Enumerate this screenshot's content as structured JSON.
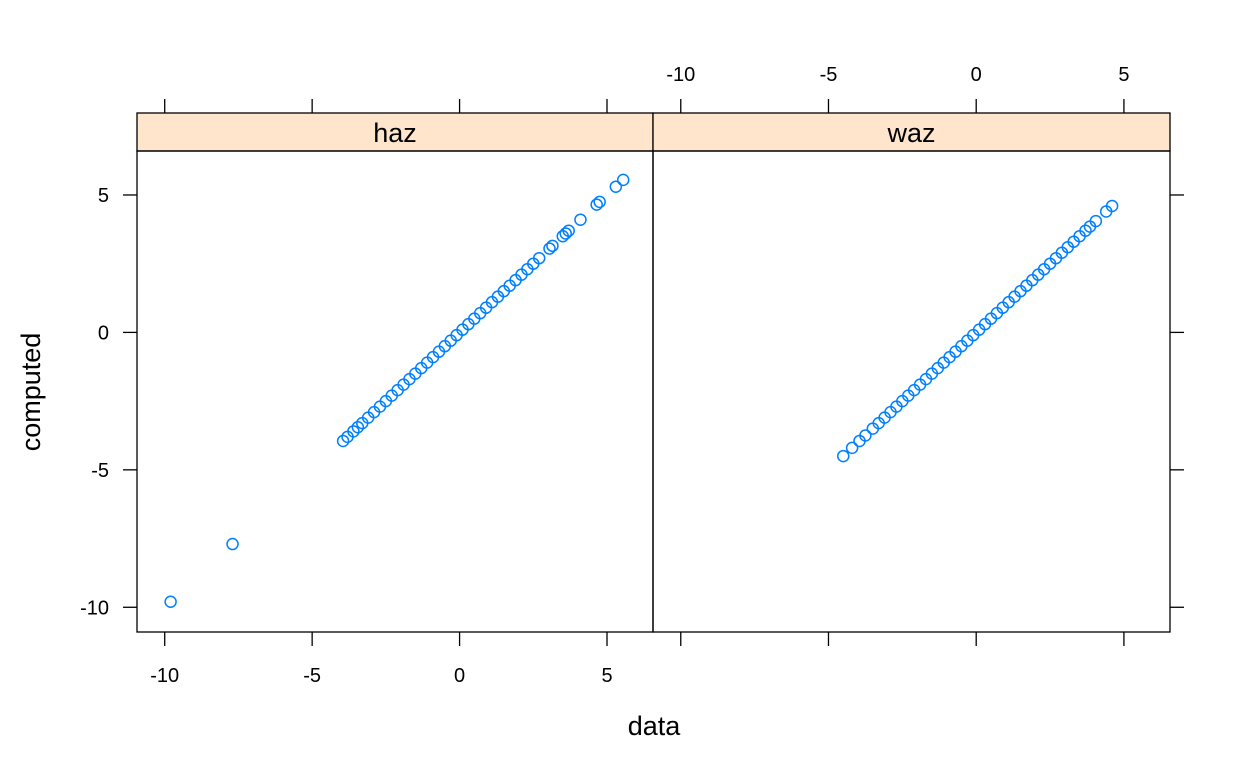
{
  "chart_data": {
    "type": "scatter",
    "xlabel": "data",
    "ylabel": "computed",
    "xlim": [
      -10.94,
      6.56
    ],
    "ylim": [
      -10.9,
      6.6
    ],
    "x_ticks": [
      -10,
      -5,
      0,
      5
    ],
    "y_ticks": [
      -10,
      -5,
      0,
      5
    ],
    "grid": false,
    "point_color": "#0080ff",
    "strip_color": "#ffe5cc",
    "panels": [
      {
        "strip": "haz",
        "points": [
          [
            -9.8,
            -9.8
          ],
          [
            -7.7,
            -7.7
          ],
          [
            -3.95,
            -3.95
          ],
          [
            -3.8,
            -3.8
          ],
          [
            -3.6,
            -3.6
          ],
          [
            -3.45,
            -3.45
          ],
          [
            -3.3,
            -3.3
          ],
          [
            -3.1,
            -3.1
          ],
          [
            -2.9,
            -2.9
          ],
          [
            -2.7,
            -2.7
          ],
          [
            -2.5,
            -2.5
          ],
          [
            -2.3,
            -2.3
          ],
          [
            -2.1,
            -2.1
          ],
          [
            -1.9,
            -1.9
          ],
          [
            -1.7,
            -1.7
          ],
          [
            -1.5,
            -1.5
          ],
          [
            -1.3,
            -1.3
          ],
          [
            -1.1,
            -1.1
          ],
          [
            -0.9,
            -0.9
          ],
          [
            -0.7,
            -0.7
          ],
          [
            -0.5,
            -0.5
          ],
          [
            -0.3,
            -0.3
          ],
          [
            -0.1,
            -0.1
          ],
          [
            0.1,
            0.1
          ],
          [
            0.3,
            0.3
          ],
          [
            0.5,
            0.5
          ],
          [
            0.7,
            0.7
          ],
          [
            0.9,
            0.9
          ],
          [
            1.1,
            1.1
          ],
          [
            1.3,
            1.3
          ],
          [
            1.5,
            1.5
          ],
          [
            1.7,
            1.7
          ],
          [
            1.9,
            1.9
          ],
          [
            2.1,
            2.1
          ],
          [
            2.3,
            2.3
          ],
          [
            2.5,
            2.5
          ],
          [
            2.7,
            2.7
          ],
          [
            3.05,
            3.05
          ],
          [
            3.15,
            3.15
          ],
          [
            3.5,
            3.5
          ],
          [
            3.6,
            3.6
          ],
          [
            3.7,
            3.7
          ],
          [
            4.1,
            4.1
          ],
          [
            4.65,
            4.65
          ],
          [
            4.75,
            4.75
          ],
          [
            5.3,
            5.3
          ],
          [
            5.55,
            5.55
          ]
        ]
      },
      {
        "strip": "waz",
        "points": [
          [
            -4.5,
            -4.5
          ],
          [
            -4.2,
            -4.2
          ],
          [
            -3.95,
            -3.95
          ],
          [
            -3.75,
            -3.75
          ],
          [
            -3.5,
            -3.5
          ],
          [
            -3.3,
            -3.3
          ],
          [
            -3.1,
            -3.1
          ],
          [
            -2.9,
            -2.9
          ],
          [
            -2.7,
            -2.7
          ],
          [
            -2.5,
            -2.5
          ],
          [
            -2.3,
            -2.3
          ],
          [
            -2.1,
            -2.1
          ],
          [
            -1.9,
            -1.9
          ],
          [
            -1.7,
            -1.7
          ],
          [
            -1.5,
            -1.5
          ],
          [
            -1.3,
            -1.3
          ],
          [
            -1.1,
            -1.1
          ],
          [
            -0.9,
            -0.9
          ],
          [
            -0.7,
            -0.7
          ],
          [
            -0.5,
            -0.5
          ],
          [
            -0.3,
            -0.3
          ],
          [
            -0.1,
            -0.1
          ],
          [
            0.1,
            0.1
          ],
          [
            0.3,
            0.3
          ],
          [
            0.5,
            0.5
          ],
          [
            0.7,
            0.7
          ],
          [
            0.9,
            0.9
          ],
          [
            1.1,
            1.1
          ],
          [
            1.3,
            1.3
          ],
          [
            1.5,
            1.5
          ],
          [
            1.7,
            1.7
          ],
          [
            1.9,
            1.9
          ],
          [
            2.1,
            2.1
          ],
          [
            2.3,
            2.3
          ],
          [
            2.5,
            2.5
          ],
          [
            2.7,
            2.7
          ],
          [
            2.9,
            2.9
          ],
          [
            3.1,
            3.1
          ],
          [
            3.3,
            3.3
          ],
          [
            3.5,
            3.5
          ],
          [
            3.7,
            3.7
          ],
          [
            3.85,
            3.85
          ],
          [
            4.05,
            4.05
          ],
          [
            4.4,
            4.4
          ],
          [
            4.6,
            4.6
          ]
        ]
      }
    ]
  }
}
